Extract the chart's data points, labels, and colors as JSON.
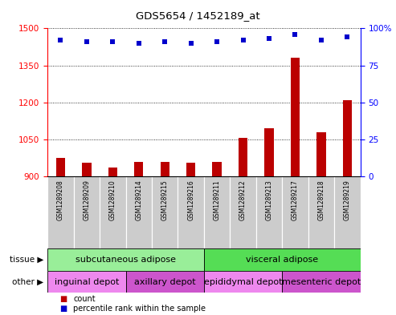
{
  "title": "GDS5654 / 1452189_at",
  "samples": [
    "GSM1289208",
    "GSM1289209",
    "GSM1289210",
    "GSM1289214",
    "GSM1289215",
    "GSM1289216",
    "GSM1289211",
    "GSM1289212",
    "GSM1289213",
    "GSM1289217",
    "GSM1289218",
    "GSM1289219"
  ],
  "counts": [
    975,
    955,
    935,
    960,
    960,
    955,
    960,
    1055,
    1095,
    1380,
    1080,
    1210
  ],
  "percentiles": [
    92,
    91,
    91,
    90,
    91,
    90,
    91,
    92,
    93,
    96,
    92,
    94
  ],
  "ylim_left": [
    900,
    1500
  ],
  "ylim_right": [
    0,
    100
  ],
  "yticks_left": [
    900,
    1050,
    1200,
    1350,
    1500
  ],
  "yticks_right": [
    0,
    25,
    50,
    75,
    100
  ],
  "bar_color": "#bb0000",
  "scatter_color": "#0000cc",
  "tissue_groups": [
    {
      "label": "subcutaneous adipose",
      "start": 0,
      "end": 6,
      "color": "#99ee99"
    },
    {
      "label": "visceral adipose",
      "start": 6,
      "end": 12,
      "color": "#55dd55"
    }
  ],
  "other_groups": [
    {
      "label": "inguinal depot",
      "start": 0,
      "end": 3,
      "color": "#ee88ee"
    },
    {
      "label": "axillary depot",
      "start": 3,
      "end": 6,
      "color": "#cc55cc"
    },
    {
      "label": "epididymal depot",
      "start": 6,
      "end": 9,
      "color": "#ee88ee"
    },
    {
      "label": "mesenteric depot",
      "start": 9,
      "end": 12,
      "color": "#cc55cc"
    }
  ],
  "tissue_label": "tissue",
  "other_label": "other",
  "legend_count_label": "count",
  "legend_pct_label": "percentile rank within the sample",
  "sample_col_bg": "#cccccc",
  "chart_bg": "#ffffff"
}
